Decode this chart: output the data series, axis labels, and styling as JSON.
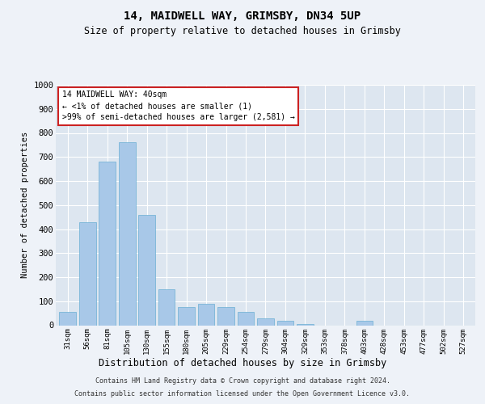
{
  "title1": "14, MAIDWELL WAY, GRIMSBY, DN34 5UP",
  "title2": "Size of property relative to detached houses in Grimsby",
  "xlabel": "Distribution of detached houses by size in Grimsby",
  "ylabel": "Number of detached properties",
  "footer1": "Contains HM Land Registry data © Crown copyright and database right 2024.",
  "footer2": "Contains public sector information licensed under the Open Government Licence v3.0.",
  "annotation_title": "14 MAIDWELL WAY: 40sqm",
  "annotation_line1": "← <1% of detached houses are smaller (1)",
  "annotation_line2": ">99% of semi-detached houses are larger (2,581) →",
  "bar_color": "#a8c8e8",
  "bar_edge_color": "#6aafd4",
  "highlight_color": "#cc2222",
  "categories": [
    "31sqm",
    "56sqm",
    "81sqm",
    "105sqm",
    "130sqm",
    "155sqm",
    "180sqm",
    "205sqm",
    "229sqm",
    "254sqm",
    "279sqm",
    "304sqm",
    "329sqm",
    "353sqm",
    "378sqm",
    "403sqm",
    "428sqm",
    "453sqm",
    "477sqm",
    "502sqm",
    "527sqm"
  ],
  "values": [
    55,
    430,
    680,
    760,
    460,
    150,
    75,
    90,
    75,
    55,
    30,
    20,
    5,
    0,
    0,
    20,
    0,
    0,
    0,
    0,
    0
  ],
  "ylim": [
    0,
    1000
  ],
  "yticks": [
    0,
    100,
    200,
    300,
    400,
    500,
    600,
    700,
    800,
    900,
    1000
  ],
  "bg_color": "#eef2f8",
  "plot_bg_color": "#dde6f0"
}
